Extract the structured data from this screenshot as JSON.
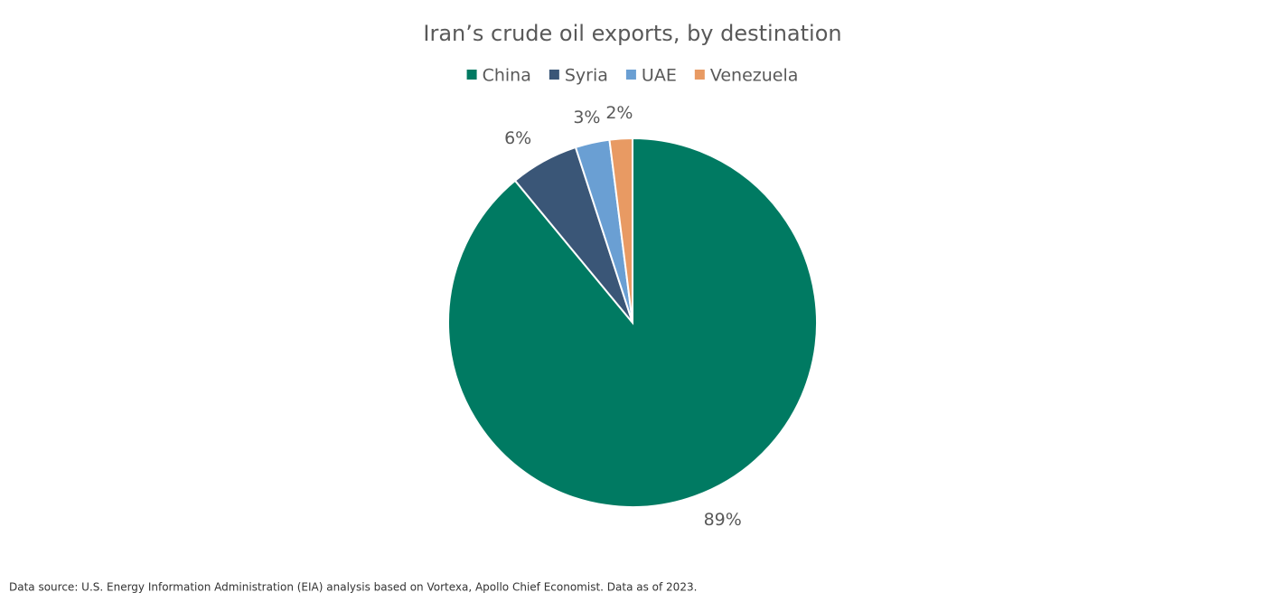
{
  "chart_data": {
    "type": "pie",
    "title": "Iran’s crude oil exports, by destination",
    "categories": [
      "China",
      "Syria",
      "UAE",
      "Venezuela"
    ],
    "values": [
      89,
      6,
      3,
      2
    ],
    "value_labels": [
      "89%",
      "6%",
      "3%",
      "2%"
    ],
    "colors": [
      "#007a62",
      "#3a5677",
      "#6a9fd3",
      "#e89a63"
    ],
    "legend": "top",
    "source": "Data source: U.S. Energy Information Administration (EIA) analysis based on Vortexa, Apollo Chief Economist. Data as of 2023."
  }
}
